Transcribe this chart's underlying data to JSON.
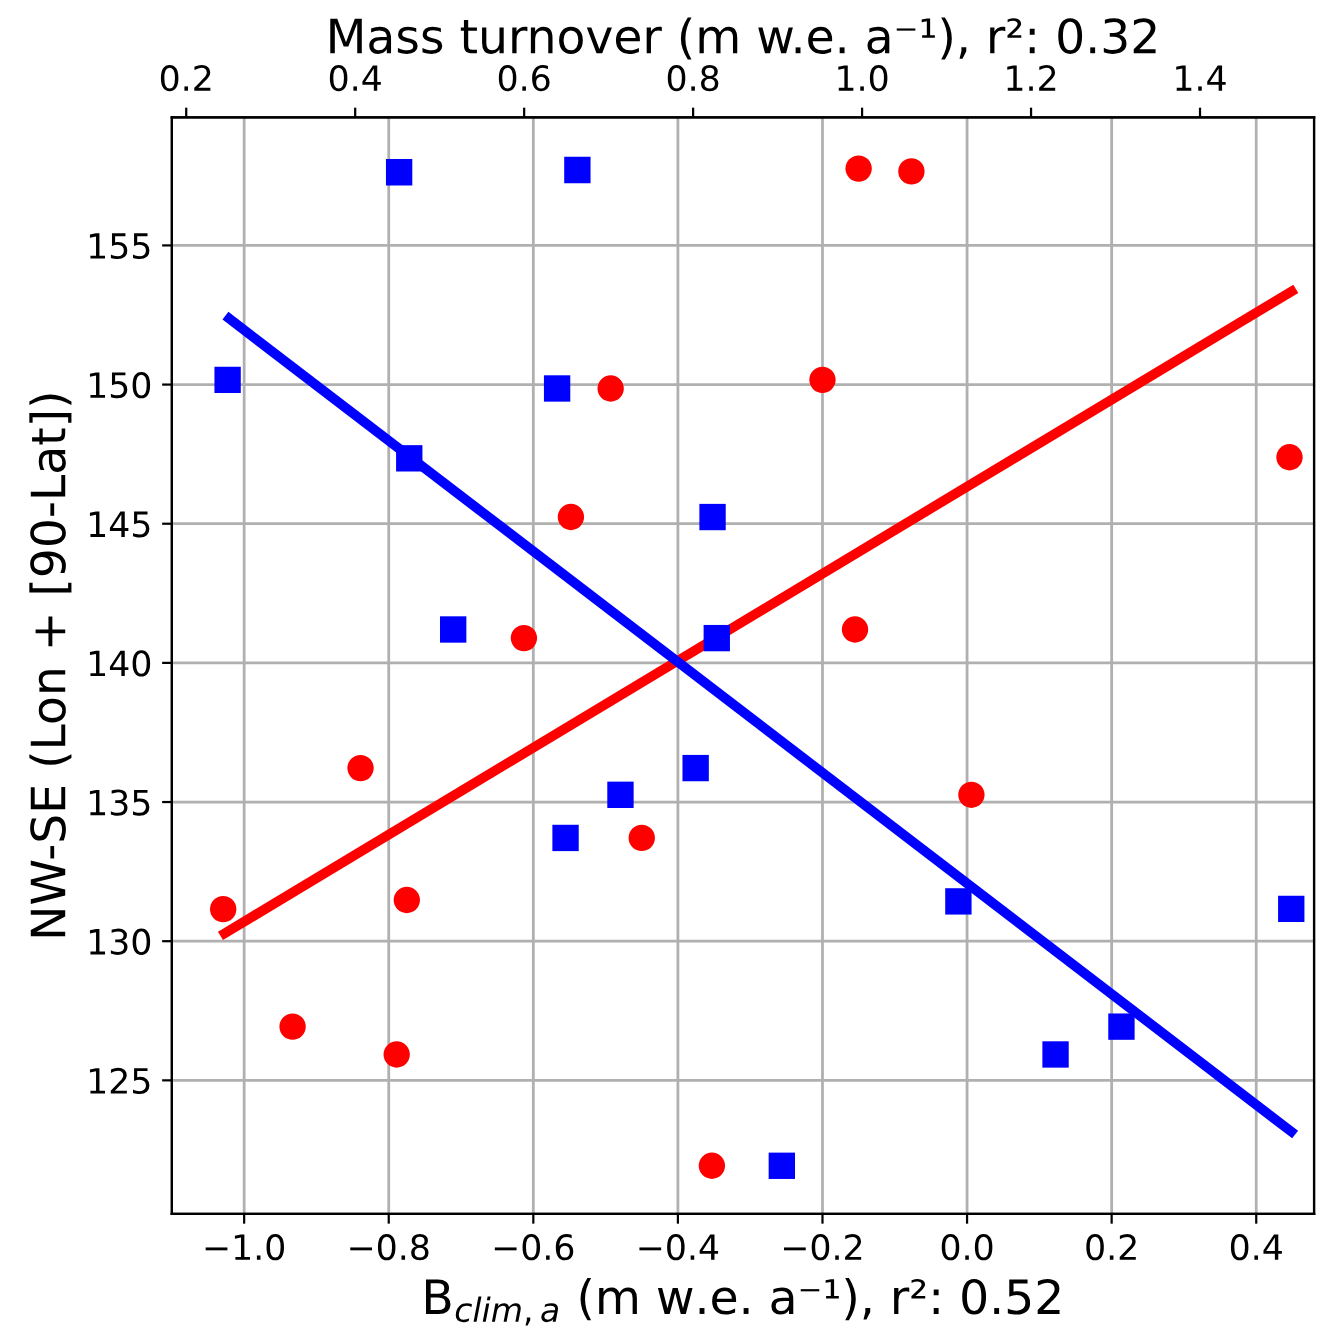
{
  "chart_data": {
    "type": "scatter",
    "xlabel": "B$_{clim,a}$ (m w.e. a⁻¹), r²: 0.52",
    "x2label": "Mass turnover (m w.e. a⁻¹), r²: 0.32",
    "ylabel": "NW-SE (Lon + [90-Lat])",
    "xlim": [
      -1.1,
      0.48
    ],
    "xticks": [
      {
        "value": -1.0,
        "label": "−1.0"
      },
      {
        "value": -0.8,
        "label": "−0.8"
      },
      {
        "value": -0.6,
        "label": "−0.6"
      },
      {
        "value": -0.4,
        "label": "−0.4"
      },
      {
        "value": -0.2,
        "label": "−0.2"
      },
      {
        "value": 0,
        "label": "0.0"
      },
      0.2,
      0.4
    ],
    "x2lim": [
      0.183,
      1.535
    ],
    "x2ticks": [
      0.2,
      0.4,
      0.6,
      0.8,
      {
        "value": 1,
        "label": "1.0"
      },
      1.2,
      1.4
    ],
    "ylim": [
      120.2,
      159.6
    ],
    "yticks": [
      125,
      130,
      135,
      140,
      145,
      150,
      155
    ],
    "grid": true,
    "series": [
      {
        "color": "#ff0000",
        "marker": "circle",
        "x": [
          -0.15,
          -0.077,
          -0.493,
          -0.548,
          -0.613,
          -0.2,
          0.446,
          -0.155,
          -0.839,
          -1.029,
          -0.775,
          -0.45,
          -0.933,
          -0.789,
          -0.353,
          0.006
        ],
        "values": [
          157.76,
          157.66,
          149.86,
          145.24,
          140.89,
          150.17,
          147.39,
          141.2,
          136.22,
          131.15,
          131.48,
          133.71,
          126.93,
          125.93,
          121.93,
          135.26
        ]
      },
      {
        "axis": "x2",
        "color": "#0000ff",
        "marker": "square",
        "x": [
          0.452,
          0.663,
          0.249,
          0.639,
          0.464,
          0.823,
          0.516,
          0.828,
          0.649,
          0.714,
          0.803,
          1.114,
          1.229,
          1.307,
          1.508,
          0.905
        ],
        "values": [
          157.63,
          157.71,
          150.17,
          149.86,
          147.35,
          145.24,
          141.2,
          140.89,
          133.71,
          135.26,
          136.22,
          131.43,
          125.93,
          126.93,
          131.16,
          121.93
        ]
      },
      {
        "type": "line",
        "color": "#ff0000",
        "x": [
          -1.027,
          0.449
        ],
        "values": [
          130.28,
          153.35
        ]
      },
      {
        "type": "line",
        "axis": "x2",
        "color": "#0000ff",
        "x": [
          0.251,
          1.508
        ],
        "values": [
          152.37,
          123.16
        ]
      }
    ]
  }
}
